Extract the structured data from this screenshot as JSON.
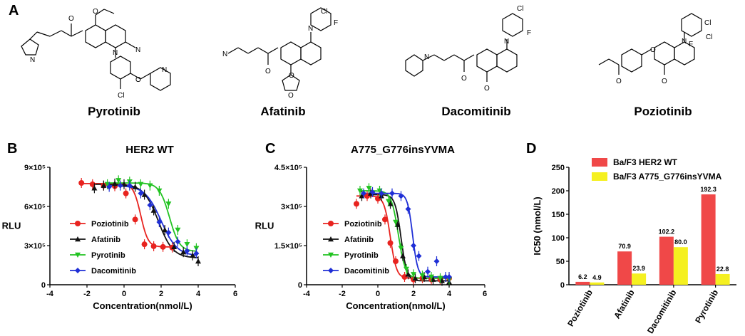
{
  "panel_a": {
    "letter": "A",
    "drugs": [
      "Pyrotinib",
      "Afatinib",
      "Dacomitinib",
      "Poziotinib"
    ]
  },
  "chart_data": [
    {
      "panel": "B",
      "type": "line",
      "title": "HER2 WT",
      "xlabel": "Concentration(nmol/L)",
      "ylabel": "RLU",
      "xlim": [
        -4,
        6
      ],
      "ylim": [
        0,
        900000
      ],
      "x_ticks": [
        "-4",
        "-2",
        "0",
        "2",
        "4",
        "6"
      ],
      "y_ticks": [
        "0",
        "3×10⁵",
        "6×10⁵",
        "9×10⁵"
      ],
      "legend_position": "bottom-left",
      "series": [
        {
          "name": "Poziotinib",
          "color": "#e8231f",
          "marker": "circle",
          "x": [
            -2.3,
            -1.7,
            -1.1,
            -0.5,
            0.1,
            0.6,
            1.1,
            1.6,
            2.1,
            2.6
          ],
          "y": [
            780000,
            770000,
            760000,
            755000,
            700000,
            500000,
            310000,
            295000,
            290000,
            285000
          ]
        },
        {
          "name": "Afatinib",
          "color": "#111111",
          "marker": "triangle",
          "x": [
            -1.6,
            -1.1,
            -0.5,
            0.0,
            0.6,
            1.1,
            1.6,
            2.2,
            2.7,
            3.2,
            3.7,
            4.0
          ],
          "y": [
            740000,
            760000,
            775000,
            770000,
            750000,
            690000,
            570000,
            420000,
            290000,
            250000,
            225000,
            180000
          ]
        },
        {
          "name": "Pyrotinib",
          "color": "#22c322",
          "marker": "triangle-down",
          "x": [
            -0.9,
            -0.3,
            0.3,
            0.9,
            1.4,
            1.9,
            2.4,
            2.9,
            3.4,
            3.9
          ],
          "y": [
            770000,
            800000,
            790000,
            770000,
            760000,
            720000,
            620000,
            420000,
            310000,
            280000
          ]
        },
        {
          "name": "Dacomitinib",
          "color": "#1f2fd6",
          "marker": "diamond",
          "x": [
            -0.8,
            -0.2,
            0.3,
            0.9,
            1.4,
            1.9,
            2.4,
            2.9,
            3.4,
            3.9
          ],
          "y": [
            750000,
            760000,
            760000,
            700000,
            610000,
            480000,
            400000,
            330000,
            260000,
            240000
          ]
        }
      ],
      "curves": [
        {
          "top": 775000,
          "bottom": 290000,
          "ic50": 0.9,
          "hill": 2.2
        },
        {
          "top": 770000,
          "bottom": 205000,
          "ic50": 1.85,
          "hill": 1.1
        },
        {
          "top": 780000,
          "bottom": 255000,
          "ic50": 2.45,
          "hill": 1.6
        },
        {
          "top": 760000,
          "bottom": 220000,
          "ic50": 2.0,
          "hill": 1.0
        }
      ]
    },
    {
      "panel": "C",
      "type": "line",
      "title": "A775_G776insYVMA",
      "xlabel": "Concentration(nmol/L)",
      "ylabel": "RLU",
      "xlim": [
        -4,
        6
      ],
      "ylim": [
        0,
        450000
      ],
      "x_ticks": [
        "-4",
        "-2",
        "0",
        "2",
        "4",
        "6"
      ],
      "y_ticks": [
        "0",
        "1.5×10⁵",
        "3×10⁵",
        "4.5×10⁵"
      ],
      "legend_position": "bottom-left",
      "series": [
        {
          "name": "Poziotinib",
          "color": "#e8231f",
          "marker": "circle",
          "x": [
            -1.2,
            -0.6,
            0.0,
            0.4,
            0.7,
            1.0,
            1.5,
            2.0,
            2.5,
            3.0,
            3.5,
            4.0
          ],
          "y": [
            310000,
            340000,
            330000,
            250000,
            160000,
            90000,
            30000,
            20000,
            25000,
            20000,
            20000,
            25000
          ]
        },
        {
          "name": "Afatinib",
          "color": "#111111",
          "marker": "triangle",
          "x": [
            -0.9,
            -0.4,
            0.2,
            0.7,
            1.1,
            1.4,
            1.7,
            2.1,
            2.6,
            3.1,
            3.6,
            4.0
          ],
          "y": [
            340000,
            350000,
            340000,
            310000,
            230000,
            110000,
            40000,
            25000,
            30000,
            20000,
            15000,
            10000
          ]
        },
        {
          "name": "Pyrotinib",
          "color": "#22c322",
          "marker": "triangle-down",
          "x": [
            -1.0,
            -0.5,
            0.1,
            0.6,
            1.0,
            1.3,
            1.6,
            2.0,
            2.5,
            3.0,
            3.5,
            4.0
          ],
          "y": [
            360000,
            370000,
            360000,
            320000,
            240000,
            140000,
            60000,
            40000,
            35000,
            30000,
            25000,
            20000
          ]
        },
        {
          "name": "Dacomitinib",
          "color": "#1f2fd6",
          "marker": "diamond",
          "x": [
            -0.8,
            -0.3,
            0.2,
            0.8,
            1.3,
            1.7,
            2.0,
            2.3,
            2.8,
            3.3,
            3.8,
            4.0
          ],
          "y": [
            350000,
            355000,
            350000,
            350000,
            340000,
            290000,
            150000,
            110000,
            50000,
            90000,
            30000,
            30000
          ]
        }
      ],
      "curves": [
        {
          "top": 340000,
          "bottom": 25000,
          "ic50": 0.7,
          "hill": 2.5
        },
        {
          "top": 345000,
          "bottom": 15000,
          "ic50": 1.3,
          "hill": 2.6
        },
        {
          "top": 360000,
          "bottom": 25000,
          "ic50": 1.15,
          "hill": 2.2
        },
        {
          "top": 350000,
          "bottom": 30000,
          "ic50": 1.95,
          "hill": 3.0
        }
      ]
    },
    {
      "panel": "D",
      "type": "bar",
      "title": "",
      "xlabel": "",
      "ylabel": "IC50 (nmol/L)",
      "ylim": [
        0,
        250
      ],
      "y_ticks": [
        "0",
        "50",
        "100",
        "150",
        "200",
        "250"
      ],
      "categories": [
        "Poziotinib",
        "Afatinib",
        "Dacomitinib",
        "Pyrotinib"
      ],
      "legend_position": "top",
      "series": [
        {
          "name": "Ba/F3 HER2 WT",
          "color": "#f04848",
          "values": [
            6.2,
            70.9,
            102.2,
            192.3
          ],
          "labels": [
            "6.2",
            "70.9",
            "102.2",
            "192.3"
          ]
        },
        {
          "name": "Ba/F3 A775_G776insYVMA",
          "color": "#f5f020",
          "values": [
            4.9,
            23.9,
            80.0,
            22.8
          ],
          "labels": [
            "4.9",
            "23.9",
            "80.0",
            "22.8"
          ]
        }
      ]
    }
  ]
}
